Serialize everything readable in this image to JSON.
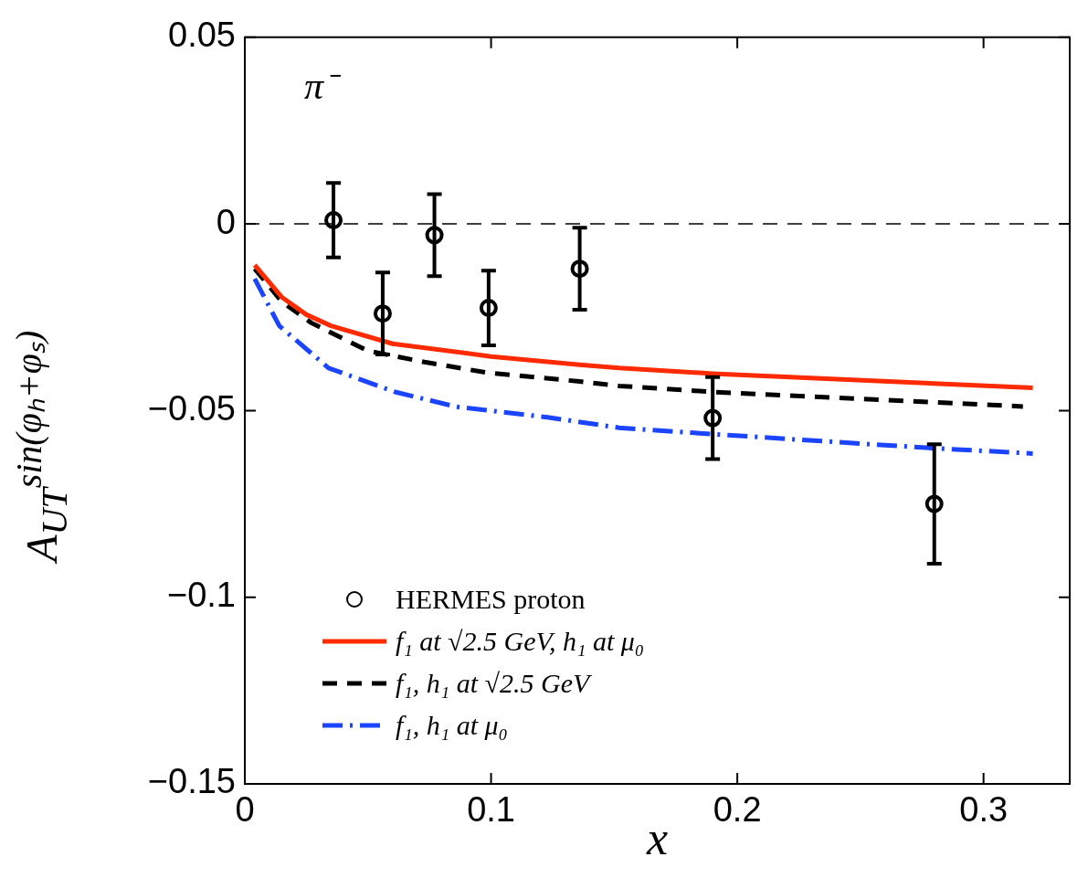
{
  "chart_data": {
    "type": "scatter",
    "xlabel": "x",
    "ylabel": "A$_{UT}$$^{sin(φₕ+φₛ)}$",
    "annotations": [
      "π⁻"
    ],
    "xlim": [
      0,
      0.335
    ],
    "ylim": [
      -0.15,
      0.05
    ],
    "xticks": [
      0,
      0.1,
      0.2,
      0.3
    ],
    "yticks": [
      {
        "value": -0.15,
        "label": "−0.15"
      },
      {
        "value": -0.1,
        "label": "−0.1"
      },
      {
        "value": -0.05,
        "label": "−0.05"
      },
      0,
      0.05
    ],
    "grid": false,
    "legend": "bottom left",
    "ref_lines": [
      {
        "axis": "y",
        "value": 0,
        "color": "#000000",
        "line_style": "dashed"
      }
    ],
    "series": [
      {
        "name": "HERMES proton",
        "marker": "circle",
        "color": "#000000",
        "x": [
          0.036,
          0.056,
          0.077,
          0.099,
          0.136,
          0.19,
          0.28
        ],
        "values": [
          0.001,
          -0.024,
          -0.003,
          -0.0225,
          -0.012,
          -0.052,
          -0.075
        ],
        "errors": [
          0.01,
          0.011,
          0.011,
          0.01,
          0.011,
          0.011,
          0.016
        ]
      },
      {
        "name": "f₁ at √2.5 GeV, h₁ at μ₀",
        "type": "line",
        "line_style": "solid",
        "color": "#ff2a00",
        "x": [
          0.004,
          0.015,
          0.025,
          0.035,
          0.06,
          0.1,
          0.136,
          0.152,
          0.19,
          0.32
        ],
        "values": [
          -0.011,
          -0.0196,
          -0.0243,
          -0.0273,
          -0.0321,
          -0.0355,
          -0.0377,
          -0.0386,
          -0.0401,
          -0.0439
        ]
      },
      {
        "name": "f₁, h₁ at √2.5 GeV",
        "type": "line",
        "line_style": "dashed",
        "color": "#000000",
        "x": [
          0.004,
          0.015,
          0.027,
          0.05,
          0.073,
          0.098,
          0.136,
          0.152,
          0.19,
          0.316
        ],
        "values": [
          -0.012,
          -0.0208,
          -0.0265,
          -0.034,
          -0.037,
          -0.0398,
          -0.0422,
          -0.0434,
          -0.045,
          -0.0489
        ]
      },
      {
        "name": "f₁, h₁ at μ₀",
        "type": "line",
        "line_style": "dashdot",
        "color": "#1a44ff",
        "x": [
          0.004,
          0.014,
          0.034,
          0.061,
          0.086,
          0.123,
          0.152,
          0.19,
          0.28,
          0.32
        ],
        "values": [
          -0.0147,
          -0.0273,
          -0.0386,
          -0.045,
          -0.049,
          -0.0518,
          -0.0546,
          -0.0563,
          -0.0601,
          -0.0615
        ]
      }
    ]
  }
}
